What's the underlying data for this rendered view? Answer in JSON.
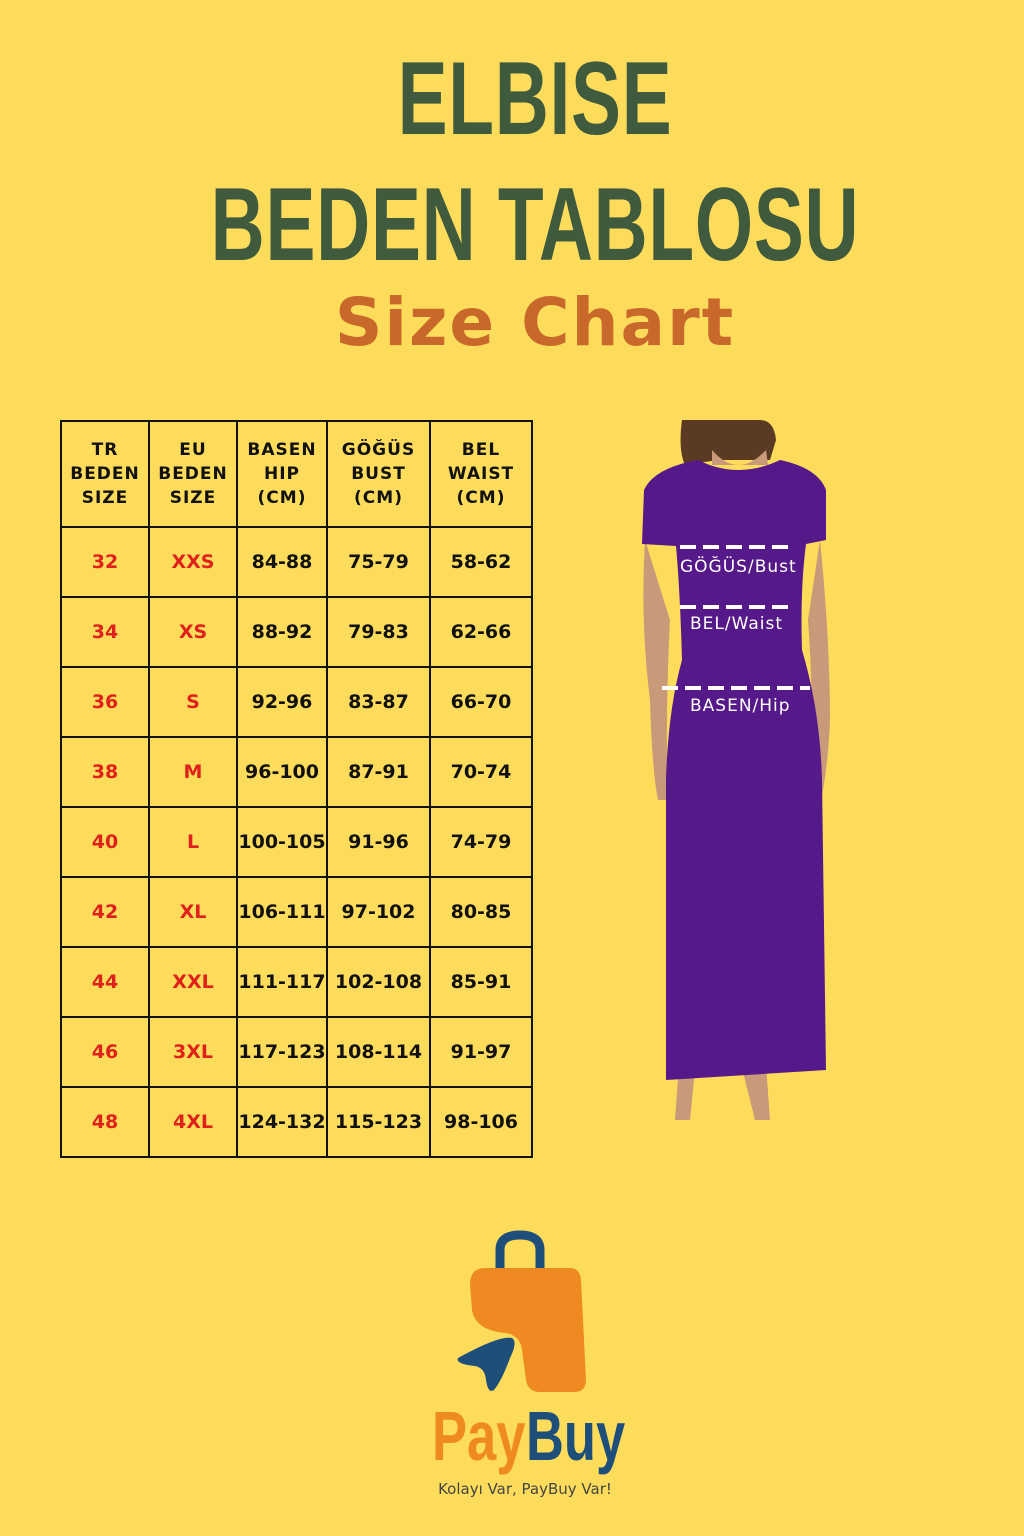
{
  "title": {
    "line1": "ELBISE",
    "line2": "BEDEN TABLOSU",
    "line3": "Size Chart"
  },
  "table": {
    "headers": [
      [
        "TR",
        "BEDEN",
        "SIZE"
      ],
      [
        "EU",
        "BEDEN",
        "SIZE"
      ],
      [
        "BASEN",
        "HIP",
        "(CM)"
      ],
      [
        "GÖĞÜS",
        "BUST",
        "(CM)"
      ],
      [
        "BEL",
        "WAIST",
        "(CM)"
      ]
    ],
    "rows": [
      [
        "32",
        "XXS",
        "84-88",
        "75-79",
        "58-62"
      ],
      [
        "34",
        "XS",
        "88-92",
        "79-83",
        "62-66"
      ],
      [
        "36",
        "S",
        "92-96",
        "83-87",
        "66-70"
      ],
      [
        "38",
        "M",
        "96-100",
        "87-91",
        "70-74"
      ],
      [
        "40",
        "L",
        "100-105",
        "91-96",
        "74-79"
      ],
      [
        "42",
        "XL",
        "106-111",
        "97-102",
        "80-85"
      ],
      [
        "44",
        "XXL",
        "111-117",
        "102-108",
        "85-91"
      ],
      [
        "46",
        "3XL",
        "117-123",
        "108-114",
        "91-97"
      ],
      [
        "48",
        "4XL",
        "124-132",
        "115-123",
        "98-106"
      ]
    ]
  },
  "model": {
    "bust_label": "GÖĞÜS/Bust",
    "waist_label": "BEL/Waist",
    "hip_label": "BASEN/Hip",
    "dress_color": "#56198a"
  },
  "brand": {
    "pay": "Pay",
    "buy": "Buy",
    "tagline": "Kolayı Var, PayBuy Var!",
    "orange": "#ef8a22",
    "blue": "#1d4f7a"
  }
}
